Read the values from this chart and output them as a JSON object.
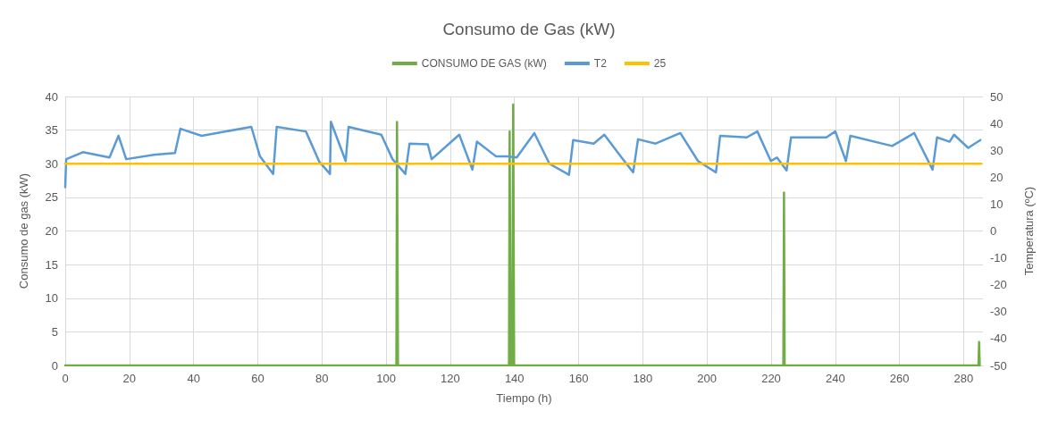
{
  "chart_data": {
    "type": "line",
    "title": "Consumo de Gas (kW)",
    "xlabel": "Tiempo (h)",
    "ylabel": "Consumo de gas (kW)",
    "y2label": "Temperatura (ºC)",
    "xlim": [
      0,
      286
    ],
    "xticks": [
      0,
      20,
      40,
      60,
      80,
      100,
      120,
      140,
      160,
      180,
      200,
      220,
      240,
      260,
      280
    ],
    "ylim": [
      0,
      40
    ],
    "yticks": [
      0,
      5,
      10,
      15,
      20,
      25,
      30,
      35,
      40
    ],
    "y2lim": [
      -50,
      50
    ],
    "y2ticks": [
      -50,
      -40,
      -30,
      -20,
      -10,
      0,
      10,
      20,
      30,
      40,
      50
    ],
    "grid": true,
    "legend": "top",
    "marker": "none",
    "line_style": "solid",
    "series": [
      {
        "name": "CONSUMO DE GAS (kW)",
        "color": "#70ad47",
        "x": [
          0,
          103.2,
          103.4,
          103.7,
          138.3,
          138.5,
          138.8,
          139.3,
          139.6,
          139.9,
          223.8,
          224,
          224.2,
          284.6,
          284.8,
          285
        ],
        "values": [
          0,
          0,
          36.2,
          0,
          0,
          34.8,
          0,
          0,
          38.8,
          0,
          0,
          25.7,
          0,
          0,
          3.5,
          0
        ]
      },
      {
        "name": "T2",
        "color": "#5b9bd5",
        "axis": "y2",
        "x": [
          0,
          0.3,
          5.5,
          13.8,
          16.6,
          19,
          27.6,
          34.2,
          35.9,
          42.5,
          58,
          60.7,
          64.8,
          65.9,
          75,
          79.2,
          82.5,
          82.8,
          87.4,
          88.3,
          98.5,
          102,
          106,
          107.3,
          113,
          114.2,
          122.8,
          126.9,
          128.3,
          134.3,
          138,
          140.7,
          146.2,
          150.9,
          157,
          158.3,
          164.7,
          168,
          173.8,
          177,
          178.5,
          184,
          191.7,
          197.2,
          202.8,
          204.1,
          212.4,
          215.7,
          219.9,
          221.8,
          224.8,
          226.2,
          237.2,
          240,
          243.3,
          244.7,
          257.7,
          264.6,
          270.3,
          271.7,
          275.6,
          277,
          281.4,
          285.2
        ],
        "values": [
          16.3,
          26.7,
          29.3,
          27.3,
          35.4,
          26.7,
          28.3,
          29,
          38,
          35.4,
          38.7,
          27.7,
          21.2,
          38.7,
          37,
          25.7,
          21.2,
          40.6,
          26,
          38.7,
          35.8,
          26.7,
          21.2,
          32.5,
          32.2,
          26.7,
          35.8,
          22.8,
          33.2,
          27.7,
          27.7,
          27.3,
          36.4,
          25,
          20.9,
          33.8,
          32.5,
          35.8,
          26.7,
          21.8,
          34.1,
          32.5,
          36.4,
          26,
          21.8,
          35.4,
          34.8,
          37,
          26,
          27.3,
          22.5,
          34.8,
          34.8,
          37,
          26,
          35.4,
          31.6,
          36.4,
          22.8,
          34.8,
          33.2,
          35.8,
          30.9,
          33.8
        ]
      },
      {
        "name": "25",
        "color": "#ffc000",
        "axis": "y2",
        "x": [
          0,
          285.5
        ],
        "values": [
          25,
          25
        ]
      }
    ]
  }
}
